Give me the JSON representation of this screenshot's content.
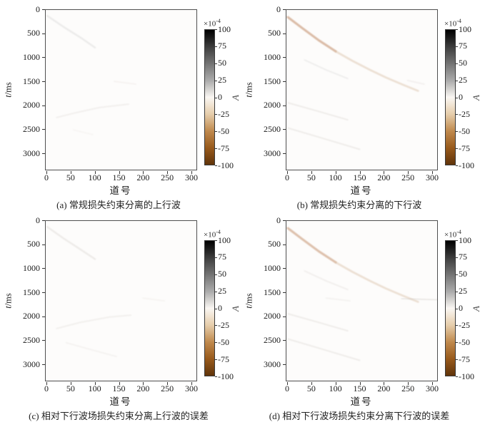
{
  "chart_data": {
    "type": "heatmap",
    "title": "",
    "xlabel": "道号",
    "ylabel": "t/ms",
    "ylabel_var": "t",
    "ylabel_unit": "/ms",
    "xlim": [
      0,
      312
    ],
    "ylim": [
      0,
      3355
    ],
    "y_axis_direction": "down",
    "x_ticks": [
      0,
      50,
      100,
      150,
      200,
      250,
      300
    ],
    "y_ticks": [
      0,
      500,
      1000,
      1500,
      2000,
      2500,
      3000
    ],
    "grid": false,
    "background_value": 0,
    "colorbar": {
      "scale_base": "×10",
      "scale_exp": "-4",
      "label": "A",
      "range": [
        -100,
        100
      ],
      "ticks": [
        100,
        75,
        50,
        25,
        0,
        -25,
        -50,
        -75,
        -100
      ],
      "gradient": [
        {
          "value": 100,
          "color": "#000000"
        },
        {
          "value": 75,
          "color": "#3d3d3d"
        },
        {
          "value": 50,
          "color": "#747474"
        },
        {
          "value": 25,
          "color": "#ababab"
        },
        {
          "value": 0,
          "color": "#faf7f3"
        },
        {
          "value": -25,
          "color": "#e6cdab"
        },
        {
          "value": -50,
          "color": "#c08a4e"
        },
        {
          "value": -75,
          "color": "#985a1c"
        },
        {
          "value": -100,
          "color": "#60340a"
        }
      ]
    },
    "panels": [
      {
        "id": "a",
        "caption": "(a) 常规损失约束分离的上行波",
        "events": [
          {
            "points": [
              [
                0,
                120
              ],
              [
                35,
                360
              ],
              [
                70,
                580
              ],
              [
                100,
                790
              ]
            ],
            "color": "#c4c4c4",
            "width": 2.5,
            "opacity": 0.3
          },
          {
            "points": [
              [
                20,
                2260
              ],
              [
                60,
                2160
              ],
              [
                110,
                2050
              ],
              [
                170,
                1980
              ]
            ],
            "color": "#cfc9c3",
            "width": 2,
            "opacity": 0.25
          },
          {
            "points": [
              [
                140,
                1500
              ],
              [
                185,
                1560
              ]
            ],
            "color": "#d5cfc9",
            "width": 2,
            "opacity": 0.2
          },
          {
            "points": [
              [
                55,
                2520
              ],
              [
                95,
                2620
              ]
            ],
            "color": "#d5cfc9",
            "width": 2,
            "opacity": 0.15
          }
        ]
      },
      {
        "id": "b",
        "caption": "(b) 常规损失约束分离的下行波",
        "events": [
          {
            "points": [
              [
                0,
                150
              ],
              [
                30,
                380
              ],
              [
                65,
                640
              ],
              [
                100,
                870
              ]
            ],
            "color": "#cda183",
            "width": 3.2,
            "opacity": 0.7
          },
          {
            "points": [
              [
                100,
                870
              ],
              [
                135,
                1070
              ],
              [
                170,
                1250
              ],
              [
                205,
                1420
              ],
              [
                240,
                1570
              ],
              [
                272,
                1700
              ]
            ],
            "color": "#dbc3ab",
            "width": 2.8,
            "opacity": 0.5
          },
          {
            "points": [
              [
                35,
                1050
              ],
              [
                80,
                1260
              ],
              [
                125,
                1440
              ]
            ],
            "color": "#cccccc",
            "width": 2,
            "opacity": 0.3
          },
          {
            "points": [
              [
                0,
                1950
              ],
              [
                60,
                2120
              ],
              [
                125,
                2310
              ]
            ],
            "color": "#ccc6c0",
            "width": 2,
            "opacity": 0.3
          },
          {
            "points": [
              [
                0,
                2480
              ],
              [
                70,
                2690
              ],
              [
                150,
                2930
              ]
            ],
            "color": "#ccc6c0",
            "width": 2,
            "opacity": 0.3
          },
          {
            "points": [
              [
                250,
                1480
              ],
              [
                285,
                1560
              ]
            ],
            "color": "#d2ccc6",
            "width": 2,
            "opacity": 0.25
          }
        ]
      },
      {
        "id": "c",
        "caption": "(c) 相对下行波场损失约束分离上行波的误差",
        "events": [
          {
            "points": [
              [
                0,
                120
              ],
              [
                35,
                370
              ],
              [
                70,
                600
              ],
              [
                100,
                800
              ]
            ],
            "color": "#c9c3bd",
            "width": 2.5,
            "opacity": 0.3
          },
          {
            "points": [
              [
                20,
                2260
              ],
              [
                70,
                2130
              ],
              [
                130,
                2020
              ],
              [
                175,
                1980
              ]
            ],
            "color": "#d0cac4",
            "width": 2,
            "opacity": 0.25
          },
          {
            "points": [
              [
                40,
                2560
              ],
              [
                90,
                2700
              ],
              [
                145,
                2850
              ]
            ],
            "color": "#d4cec8",
            "width": 2,
            "opacity": 0.2
          },
          {
            "points": [
              [
                200,
                1620
              ],
              [
                245,
                1680
              ]
            ],
            "color": "#d6d0ca",
            "width": 2,
            "opacity": 0.18
          }
        ]
      },
      {
        "id": "d",
        "caption": "(d) 相对下行波场损失约束分离下行波的误差",
        "events": [
          {
            "points": [
              [
                0,
                150
              ],
              [
                30,
                380
              ],
              [
                65,
                640
              ],
              [
                100,
                870
              ]
            ],
            "color": "#cda183",
            "width": 3.2,
            "opacity": 0.65
          },
          {
            "points": [
              [
                100,
                870
              ],
              [
                135,
                1070
              ],
              [
                170,
                1250
              ],
              [
                205,
                1420
              ],
              [
                240,
                1570
              ],
              [
                272,
                1700
              ]
            ],
            "color": "#dbc3ab",
            "width": 2.8,
            "opacity": 0.5
          },
          {
            "points": [
              [
                238,
                1630
              ],
              [
                312,
                1660
              ]
            ],
            "color": "#ccc6c0",
            "width": 2.2,
            "opacity": 0.35
          },
          {
            "points": [
              [
                35,
                1050
              ],
              [
                80,
                1260
              ],
              [
                125,
                1440
              ]
            ],
            "color": "#cfc9c3",
            "width": 2,
            "opacity": 0.25
          },
          {
            "points": [
              [
                0,
                1950
              ],
              [
                60,
                2120
              ],
              [
                125,
                2310
              ]
            ],
            "color": "#ccc6c0",
            "width": 2,
            "opacity": 0.3
          },
          {
            "points": [
              [
                0,
                2480
              ],
              [
                70,
                2690
              ],
              [
                150,
                2930
              ]
            ],
            "color": "#ccc6c0",
            "width": 2,
            "opacity": 0.3
          },
          {
            "points": [
              [
                80,
                1620
              ],
              [
                130,
                1680
              ]
            ],
            "color": "#d4cec8",
            "width": 2,
            "opacity": 0.2
          }
        ]
      }
    ]
  }
}
